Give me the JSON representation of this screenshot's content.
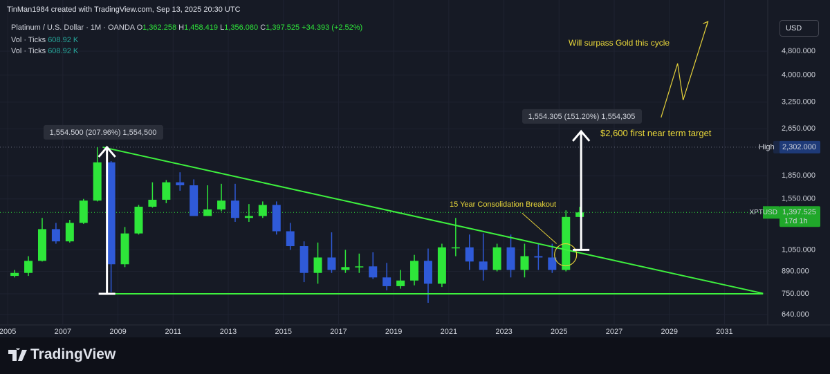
{
  "header": {
    "credit": "TinMan1984 created with TradingView.com, Sep 13, 2025 20:30 UTC"
  },
  "legend": {
    "symbol": "Platinum / U.S. Dollar · 1M · OANDA",
    "ohlc": [
      {
        "key": "O",
        "value": "1,362.258"
      },
      {
        "key": "H",
        "value": "1,458.419"
      },
      {
        "key": "L",
        "value": "1,356.080"
      },
      {
        "key": "C",
        "value": "1,397.525"
      }
    ],
    "change": "+34.393 (+2.52%)",
    "indicators": [
      {
        "name": "Vol · Ticks",
        "value": "608.92 K"
      },
      {
        "name": "Vol · Ticks",
        "value": "608.92 K"
      }
    ]
  },
  "currency": "USD",
  "footer": {
    "brand": "TradingView"
  },
  "chart_data": {
    "type": "candlestick",
    "x": [
      2005.25,
      2005.75,
      2006.25,
      2006.75,
      2007.25,
      2007.75,
      2008.25,
      2008.75,
      2009.25,
      2009.75,
      2010.25,
      2010.75,
      2011.25,
      2011.75,
      2012.25,
      2012.75,
      2013.25,
      2013.75,
      2014.25,
      2014.75,
      2015.25,
      2015.75,
      2016.25,
      2016.75,
      2017.25,
      2017.75,
      2018.25,
      2018.75,
      2019.25,
      2019.75,
      2020.25,
      2020.75,
      2021.25,
      2021.75,
      2022.25,
      2022.75,
      2023.25,
      2023.75,
      2024.25,
      2024.75,
      2025.25,
      2025.75
    ],
    "open": [
      860,
      880,
      965,
      1230,
      1120,
      1290,
      1530,
      2050,
      940,
      1190,
      1460,
      1540,
      1760,
      1720,
      1360,
      1430,
      1530,
      1340,
      1360,
      1480,
      1210,
      1080,
      880,
      990,
      900,
      920,
      925,
      850,
      795,
      830,
      965,
      810,
      1070,
      1070,
      960,
      900,
      1070,
      900,
      1000,
      990,
      900,
      1350
    ],
    "high": [
      900,
      1000,
      1340,
      1290,
      1320,
      1550,
      2302,
      2070,
      1250,
      1480,
      1760,
      1790,
      1900,
      1800,
      1720,
      1740,
      1740,
      1490,
      1520,
      1520,
      1290,
      1120,
      1110,
      1200,
      1050,
      1020,
      1030,
      950,
      900,
      1010,
      1060,
      1100,
      1340,
      1180,
      1190,
      1100,
      1180,
      1100,
      1100,
      1100,
      1420,
      1458.419
    ],
    "low": [
      850,
      860,
      960,
      1100,
      1110,
      1280,
      1520,
      760,
      920,
      1180,
      1450,
      1500,
      1650,
      1360,
      1360,
      1410,
      1300,
      1300,
      1340,
      1180,
      1050,
      820,
      810,
      880,
      880,
      880,
      840,
      770,
      780,
      800,
      700,
      790,
      1000,
      900,
      830,
      890,
      850,
      850,
      900,
      880,
      890,
      1350
    ],
    "close": [
      880,
      965,
      1230,
      1120,
      1290,
      1530,
      2050,
      940,
      1190,
      1460,
      1540,
      1760,
      1720,
      1360,
      1430,
      1530,
      1340,
      1360,
      1480,
      1210,
      1080,
      880,
      990,
      900,
      920,
      925,
      850,
      795,
      830,
      965,
      810,
      1070,
      1070,
      960,
      900,
      1070,
      900,
      1000,
      990,
      900,
      1350,
      1397.525
    ],
    "up_color": "#2ee63a",
    "down_color": "#2f5ad8",
    "xlim": [
      2004.72,
      2032.57
    ],
    "xticks": [
      2005,
      2007,
      2009,
      2011,
      2013,
      2015,
      2017,
      2019,
      2021,
      2023,
      2025,
      2027,
      2029,
      2031
    ],
    "ylim": [
      591,
      7100
    ],
    "log_scale": true,
    "yticks": [
      {
        "value": 640,
        "label": "640.000"
      },
      {
        "value": 750,
        "label": "750.000"
      },
      {
        "value": 890,
        "label": "890.000"
      },
      {
        "value": 1050,
        "label": "1,050.000"
      },
      {
        "value": 1550,
        "label": "1,550.000"
      },
      {
        "value": 1850,
        "label": "1,850.000"
      },
      {
        "value": 2650,
        "label": "2,650.000"
      },
      {
        "value": 3250,
        "label": "3,250.000"
      },
      {
        "value": 4000,
        "label": "4,000.000"
      },
      {
        "value": 4800,
        "label": "4,800.000"
      }
    ],
    "grid": true,
    "high_marker": {
      "name": "High",
      "value": 2302,
      "label": "2,302.000"
    },
    "price_marker": {
      "name": "XPTUSD",
      "value": 1397.525,
      "label": "1,397.525",
      "countdown": "17d 1h"
    },
    "trendlines": [
      {
        "color": "#3ef03e",
        "x": [
          2008.45,
          2032.4
        ],
        "y": [
          2302,
          752
        ]
      },
      {
        "color": "#3ef03e",
        "x": [
          2008.6,
          2032.4
        ],
        "y": [
          750,
          750
        ]
      }
    ],
    "arrows": [
      {
        "color": "#ffffff",
        "x": [
          2008.6,
          2008.6
        ],
        "y": [
          750,
          2302
        ],
        "label": "1,554.500 (207.96%) 1,554,500"
      },
      {
        "color": "#ffffff",
        "x": [
          2025.8,
          2025.8
        ],
        "y": [
          1050,
          2600
        ],
        "label": "1,554.305 (151.20%) 1,554,305"
      }
    ],
    "projection": {
      "color": "#e6d23a",
      "x": [
        2028.7,
        2029.3,
        2029.5,
        2030.4
      ],
      "y": [
        2890,
        4370,
        3300,
        6020
      ]
    },
    "breakout_pointer": {
      "color": "#e6d23a",
      "x": [
        2023.66,
        2024.91
      ],
      "y": [
        1390,
        1100
      ]
    },
    "annotations": [
      "Will surpass Gold this cycle",
      "$2,600 first near term target",
      "15 Year Consolidation Breakout"
    ]
  }
}
